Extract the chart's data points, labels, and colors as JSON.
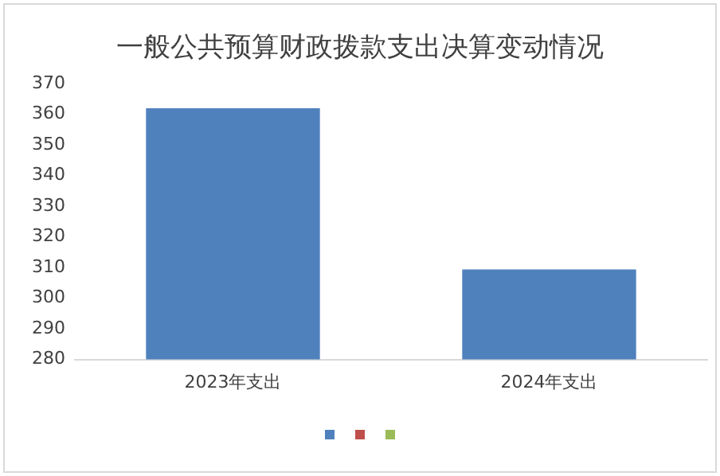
{
  "chart_data": {
    "type": "bar",
    "title": "一般公共预算财政拨款支出决算变动情况",
    "categories": [
      "2023年支出",
      "2024年支出"
    ],
    "series": [
      {
        "color": "#4f81bd",
        "values": [
          362,
          309.4
        ]
      }
    ],
    "ylim": [
      280,
      370
    ],
    "yticks": [
      280,
      290,
      300,
      310,
      320,
      330,
      340,
      350,
      360,
      370
    ],
    "grid": false
  }
}
